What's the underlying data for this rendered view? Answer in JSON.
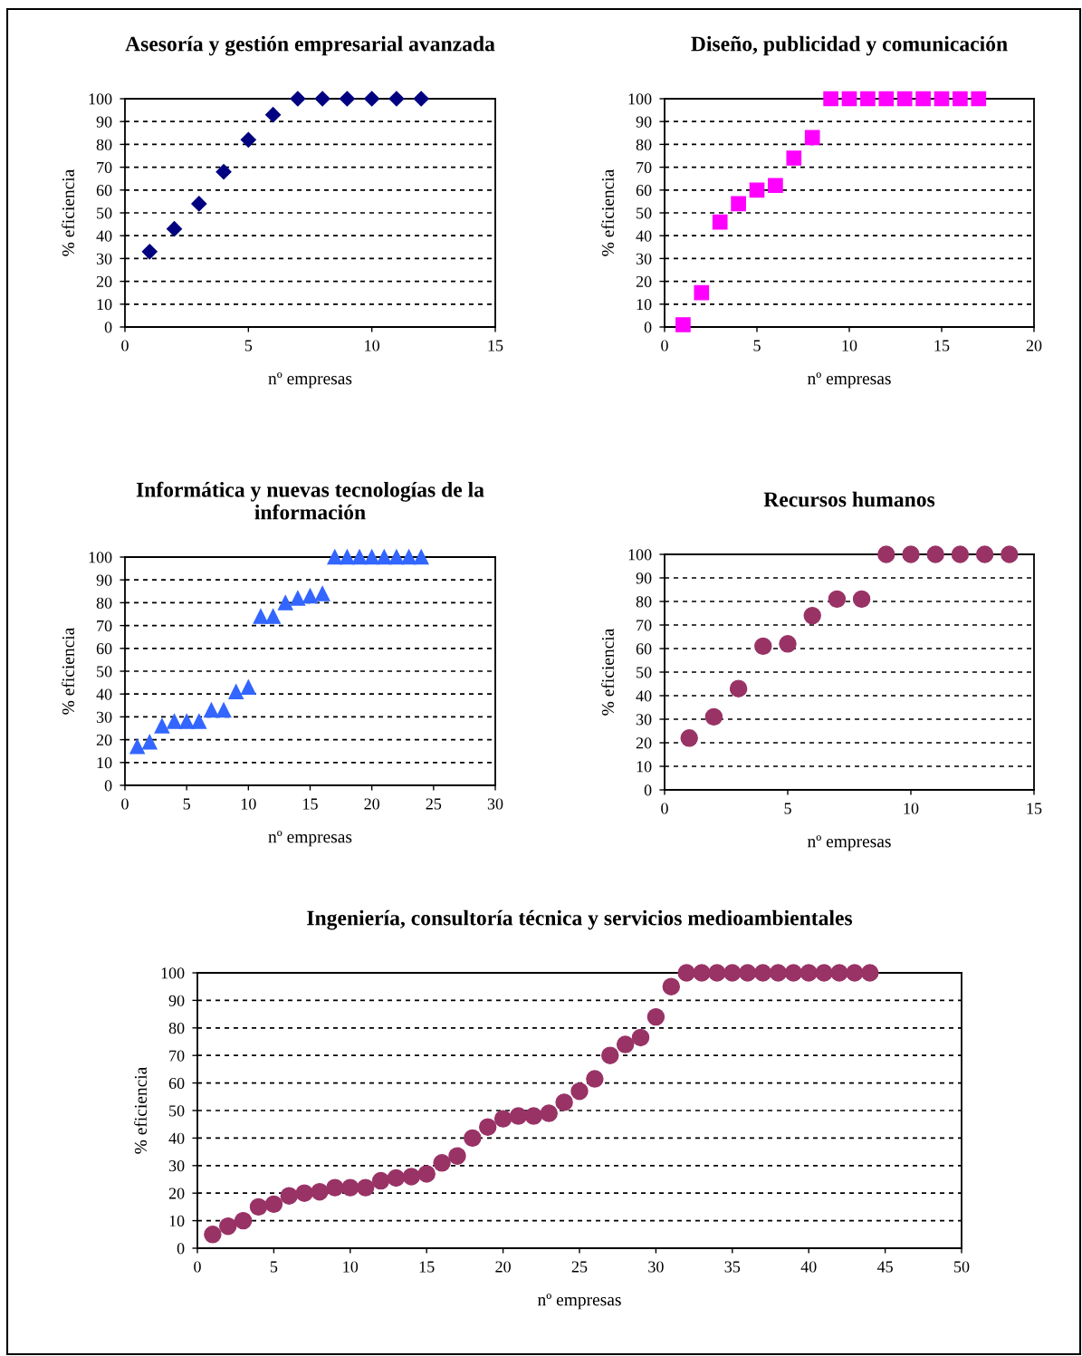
{
  "chart_data": [
    {
      "type": "scatter",
      "title": "Asesoría y gestión empresarial avanzada",
      "xlabel": "nº empresas",
      "ylabel": "% eficiencia",
      "marker": "diamond",
      "grid": "y",
      "xlim": [
        0,
        15
      ],
      "ylim": [
        0,
        100
      ],
      "xticks": [
        0,
        5,
        10,
        15
      ],
      "yticks": [
        0,
        10,
        20,
        30,
        40,
        50,
        60,
        70,
        80,
        90,
        100
      ],
      "series": [
        {
          "color": "#000080",
          "x": [
            1,
            2,
            3,
            4,
            5,
            6,
            7,
            8,
            9,
            10,
            11,
            12
          ],
          "values": [
            33,
            43,
            54,
            68,
            82,
            93,
            100,
            100,
            100,
            100,
            100,
            100
          ]
        }
      ]
    },
    {
      "type": "scatter",
      "title": "Diseño, publicidad y comunicación",
      "xlabel": "nº empresas",
      "ylabel": "% eficiencia",
      "marker": "square",
      "grid": "y",
      "xlim": [
        0,
        20
      ],
      "ylim": [
        0,
        100
      ],
      "xticks": [
        0,
        5,
        10,
        15,
        20
      ],
      "yticks": [
        0,
        10,
        20,
        30,
        40,
        50,
        60,
        70,
        80,
        90,
        100
      ],
      "series": [
        {
          "color": "#ff00ff",
          "x": [
            1,
            2,
            3,
            4,
            5,
            6,
            7,
            8,
            9,
            10,
            11,
            12,
            13,
            14,
            15,
            16,
            17
          ],
          "values": [
            1,
            15,
            46,
            54,
            60,
            62,
            74,
            83,
            100,
            100,
            100,
            100,
            100,
            100,
            100,
            100,
            100
          ]
        }
      ]
    },
    {
      "type": "scatter",
      "title": "Informática y nuevas tecnologías de la\ninformación",
      "xlabel": "nº empresas",
      "ylabel": "% eficiencia",
      "marker": "triangle",
      "grid": "y",
      "xlim": [
        0,
        30
      ],
      "ylim": [
        0,
        100
      ],
      "xticks": [
        0,
        5,
        10,
        15,
        20,
        25,
        30
      ],
      "yticks": [
        0,
        10,
        20,
        30,
        40,
        50,
        60,
        70,
        80,
        90,
        100
      ],
      "series": [
        {
          "color": "#3366ff",
          "x": [
            1,
            2,
            3,
            4,
            5,
            6,
            7,
            8,
            9,
            10,
            11,
            12,
            13,
            14,
            15,
            16,
            17,
            18,
            19,
            20,
            21,
            22,
            23,
            24
          ],
          "values": [
            17,
            19,
            26,
            28,
            28,
            28,
            33,
            33,
            41,
            43,
            74,
            74,
            80,
            82,
            83,
            84,
            100,
            100,
            100,
            100,
            100,
            100,
            100,
            100
          ]
        }
      ]
    },
    {
      "type": "scatter",
      "title": "Recursos humanos",
      "xlabel": "nº empresas",
      "ylabel": "% eficiencia",
      "marker": "circle",
      "grid": "y",
      "xlim": [
        0,
        15
      ],
      "ylim": [
        0,
        100
      ],
      "xticks": [
        0,
        5,
        10,
        15
      ],
      "yticks": [
        0,
        10,
        20,
        30,
        40,
        50,
        60,
        70,
        80,
        90,
        100
      ],
      "series": [
        {
          "color": "#993366",
          "x": [
            1,
            2,
            3,
            4,
            5,
            6,
            7,
            8,
            9,
            10,
            11,
            12,
            13,
            14
          ],
          "values": [
            22,
            31,
            43,
            61,
            62,
            74,
            81,
            81,
            100,
            100,
            100,
            100,
            100,
            100
          ]
        }
      ]
    },
    {
      "type": "scatter",
      "title": "Ingeniería, consultoría técnica y servicios medioambientales",
      "xlabel": "nº empresas",
      "ylabel": "% eficiencia",
      "marker": "circle",
      "grid": "y",
      "xlim": [
        0,
        50
      ],
      "ylim": [
        0,
        100
      ],
      "xticks": [
        0,
        5,
        10,
        15,
        20,
        25,
        30,
        35,
        40,
        45,
        50
      ],
      "yticks": [
        0,
        10,
        20,
        30,
        40,
        50,
        60,
        70,
        80,
        90,
        100
      ],
      "series": [
        {
          "color": "#993366",
          "x": [
            1,
            2,
            3,
            4,
            5,
            6,
            7,
            8,
            9,
            10,
            11,
            12,
            13,
            14,
            15,
            16,
            17,
            18,
            19,
            20,
            21,
            22,
            23,
            24,
            25,
            26,
            27,
            28,
            29,
            30,
            31,
            32,
            33,
            34,
            35,
            36,
            37,
            38,
            39,
            40,
            41,
            42,
            43,
            44
          ],
          "values": [
            5,
            8,
            10,
            15,
            16,
            19,
            20,
            20.5,
            22,
            22,
            22,
            24.5,
            25.5,
            26,
            27,
            31,
            33.5,
            40,
            44,
            47,
            48,
            48,
            49,
            53,
            57,
            61.5,
            70,
            74,
            76.5,
            84,
            95,
            100,
            100,
            100,
            100,
            100,
            100,
            100,
            100,
            100,
            100,
            100,
            100,
            100
          ]
        }
      ]
    }
  ]
}
